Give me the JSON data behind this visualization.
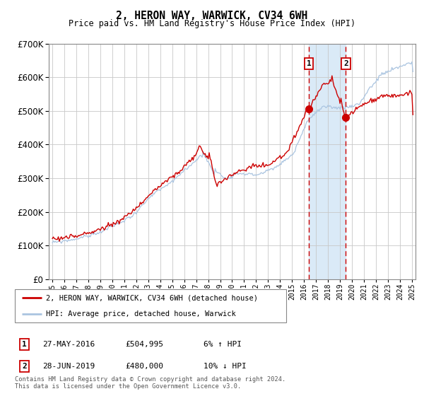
{
  "title": "2, HERON WAY, WARWICK, CV34 6WH",
  "subtitle": "Price paid vs. HM Land Registry's House Price Index (HPI)",
  "legend_line1": "2, HERON WAY, WARWICK, CV34 6WH (detached house)",
  "legend_line2": "HPI: Average price, detached house, Warwick",
  "transaction1_date": "27-MAY-2016",
  "transaction1_price": 504995,
  "transaction1_price_str": "£504,995",
  "transaction1_note": "6% ↑ HPI",
  "transaction2_date": "28-JUN-2019",
  "transaction2_price": 480000,
  "transaction2_price_str": "£480,000",
  "transaction2_note": "10% ↓ HPI",
  "footer": "Contains HM Land Registry data © Crown copyright and database right 2024.\nThis data is licensed under the Open Government Licence v3.0.",
  "hpi_color": "#aac4e0",
  "price_color": "#cc0000",
  "dot_color": "#cc0000",
  "vline_color": "#cc0000",
  "shade_color": "#daeaf7",
  "background_color": "#ffffff",
  "grid_color": "#c8c8c8",
  "ylim": [
    0,
    700000
  ],
  "yticks": [
    0,
    100000,
    200000,
    300000,
    400000,
    500000,
    600000,
    700000
  ],
  "start_year": 1995,
  "end_year": 2025,
  "transaction1_year": 2016.41,
  "transaction2_year": 2019.49
}
